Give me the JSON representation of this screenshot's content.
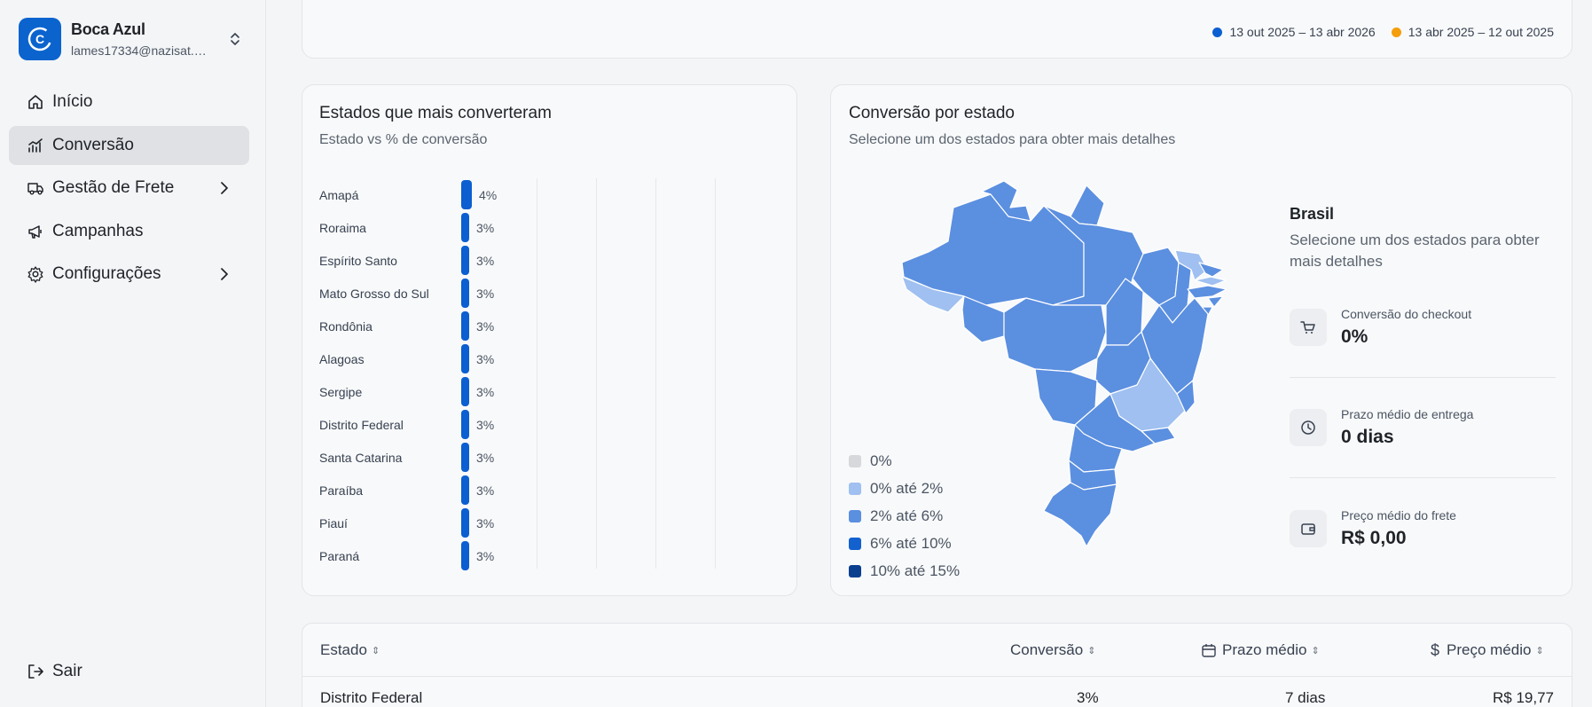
{
  "account": {
    "name": "Boca Azul",
    "email": "lames17334@nazisat.…",
    "logo_letter": "C"
  },
  "nav": [
    {
      "label": "Início",
      "icon": "home-icon",
      "has_submenu": false
    },
    {
      "label": "Conversão",
      "icon": "chart-icon",
      "has_submenu": false,
      "active": true
    },
    {
      "label": "Gestão de Frete",
      "icon": "truck-icon",
      "has_submenu": true
    },
    {
      "label": "Campanhas",
      "icon": "megaphone-icon",
      "has_submenu": false
    },
    {
      "label": "Configurações",
      "icon": "gear-icon",
      "has_submenu": true
    }
  ],
  "logout_label": "Sair",
  "period_legend": [
    {
      "label": "13 out 2025 – 13 abr 2026",
      "color": "#0b5fd0"
    },
    {
      "label": "13 abr 2025 – 12 out 2025",
      "color": "#f59e0b"
    }
  ],
  "states_card": {
    "title": "Estados que mais converteram",
    "subtitle": "Estado vs % de conversão"
  },
  "chart_data": {
    "type": "bar",
    "orientation": "horizontal",
    "title": "Estados que mais converteram",
    "subtitle": "Estado vs % de conversão",
    "categories": [
      "Amapá",
      "Roraima",
      "Espírito Santo",
      "Mato Grosso do Sul",
      "Rondônia",
      "Alagoas",
      "Sergipe",
      "Distrito Federal",
      "Santa Catarina",
      "Paraíba",
      "Piauí",
      "Paraná"
    ],
    "values": [
      4,
      3,
      3,
      3,
      3,
      3,
      3,
      3,
      3,
      3,
      3,
      3
    ],
    "value_labels": [
      "4%",
      "3%",
      "3%",
      "3%",
      "3%",
      "3%",
      "3%",
      "3%",
      "3%",
      "3%",
      "3%",
      "3%"
    ],
    "bar_color": "#0b5fd0",
    "grid": true
  },
  "map_card": {
    "title": "Conversão por estado",
    "subtitle": "Selecione um dos estados para obter mais detalhes",
    "legend": [
      {
        "label": "0%",
        "color": "#d6d8dc"
      },
      {
        "label": "0% até 2%",
        "color": "#9fc0f0"
      },
      {
        "label": "2% até 6%",
        "color": "#5b8fe0"
      },
      {
        "label": "6% até 10%",
        "color": "#1261cf"
      },
      {
        "label": "10% até 15%",
        "color": "#0a3f8f"
      }
    ]
  },
  "detail": {
    "title": "Brasil",
    "subtitle": "Selecione um dos estados para obter mais detalhes",
    "metrics": [
      {
        "label": "Conversão do checkout",
        "value": "0%",
        "icon": "cart-icon"
      },
      {
        "label": "Prazo médio de entrega",
        "value": "0 dias",
        "icon": "clock-icon"
      },
      {
        "label": "Preço médio do frete",
        "value": "R$ 0,00",
        "icon": "wallet-icon"
      }
    ]
  },
  "table": {
    "headers": {
      "estado": "Estado",
      "conversao": "Conversão",
      "prazo": "Prazo médio",
      "preco": "Preço médio"
    },
    "rows": [
      {
        "estado": "Distrito Federal",
        "conversao": "3%",
        "prazo": "7 dias",
        "preco": "R$ 19,77"
      }
    ]
  }
}
